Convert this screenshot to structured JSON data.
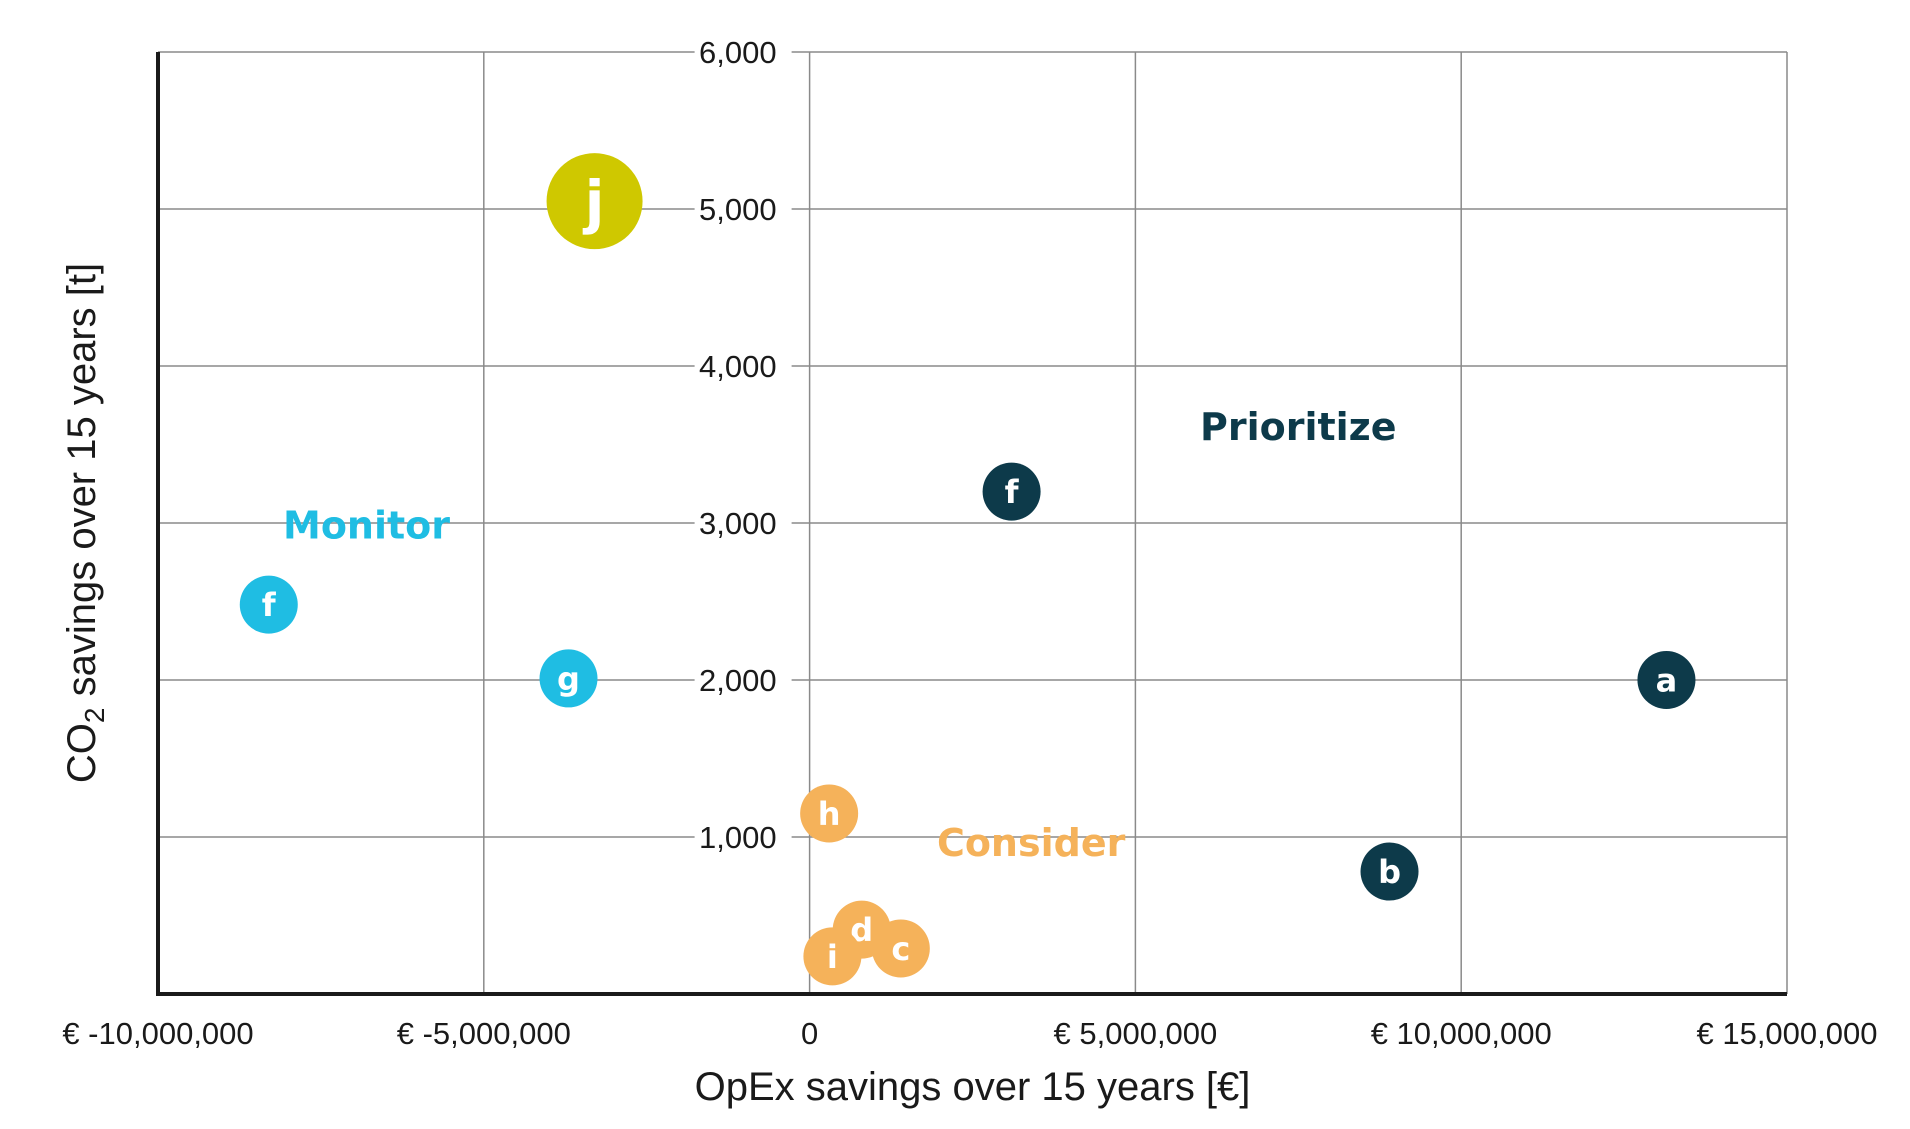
{
  "chart_data": {
    "type": "scatter",
    "xlabel": "OpEx savings over 15 years [€]",
    "ylabel": {
      "main": "CO",
      "sub": "2",
      "rest": " savings over 15 years [t]"
    },
    "xlim": [
      -10000000,
      15000000
    ],
    "ylim": [
      0,
      6000
    ],
    "x_ticks": [
      {
        "value": -10000000,
        "label": "€ -10,000,000"
      },
      {
        "value": -5000000,
        "label": "€ -5,000,000"
      },
      {
        "value": 0,
        "label": "0"
      },
      {
        "value": 5000000,
        "label": "€ 5,000,000"
      },
      {
        "value": 10000000,
        "label": "€ 10,000,000"
      },
      {
        "value": 15000000,
        "label": "€ 15,000,000"
      }
    ],
    "y_ticks": [
      {
        "value": 1000,
        "label": "1,000"
      },
      {
        "value": 2000,
        "label": "2,000"
      },
      {
        "value": 3000,
        "label": "3,000"
      },
      {
        "value": 4000,
        "label": "4,000"
      },
      {
        "value": 5000,
        "label": "5,000"
      },
      {
        "value": 6000,
        "label": "6,000"
      }
    ],
    "grid": true,
    "groups": [
      {
        "name": "Prioritize",
        "color": "#0d3a4a"
      },
      {
        "name": "Monitor",
        "color": "#1fbde3"
      },
      {
        "name": "Consider",
        "color": "#f5b25a"
      },
      {
        "name": "",
        "color": "#cfc800"
      }
    ],
    "points": [
      {
        "label": "j",
        "x": -3300000,
        "y": 5050,
        "group": 3,
        "size": "large"
      },
      {
        "label": "f",
        "x": 3100000,
        "y": 3200,
        "group": 0,
        "size": "normal"
      },
      {
        "label": "a",
        "x": 13150000,
        "y": 2000,
        "group": 0,
        "size": "normal"
      },
      {
        "label": "b",
        "x": 8900000,
        "y": 780,
        "group": 0,
        "size": "normal"
      },
      {
        "label": "f",
        "x": -8300000,
        "y": 2480,
        "group": 1,
        "size": "normal"
      },
      {
        "label": "g",
        "x": -3700000,
        "y": 2010,
        "group": 1,
        "size": "normal"
      },
      {
        "label": "h",
        "x": 300000,
        "y": 1150,
        "group": 2,
        "size": "normal"
      },
      {
        "label": "d",
        "x": 800000,
        "y": 410,
        "group": 2,
        "size": "normal"
      },
      {
        "label": "c",
        "x": 1400000,
        "y": 290,
        "group": 2,
        "size": "normal"
      },
      {
        "label": "i",
        "x": 350000,
        "y": 240,
        "group": 2,
        "size": "normal"
      }
    ],
    "quadrant_labels": [
      {
        "text": "Prioritize",
        "x": 7500000,
        "y": 3530,
        "group": 0
      },
      {
        "text": "Monitor",
        "x": -6800000,
        "y": 2900,
        "group": 1
      },
      {
        "text": "Consider",
        "x": 3400000,
        "y": 880,
        "group": 2
      }
    ]
  }
}
